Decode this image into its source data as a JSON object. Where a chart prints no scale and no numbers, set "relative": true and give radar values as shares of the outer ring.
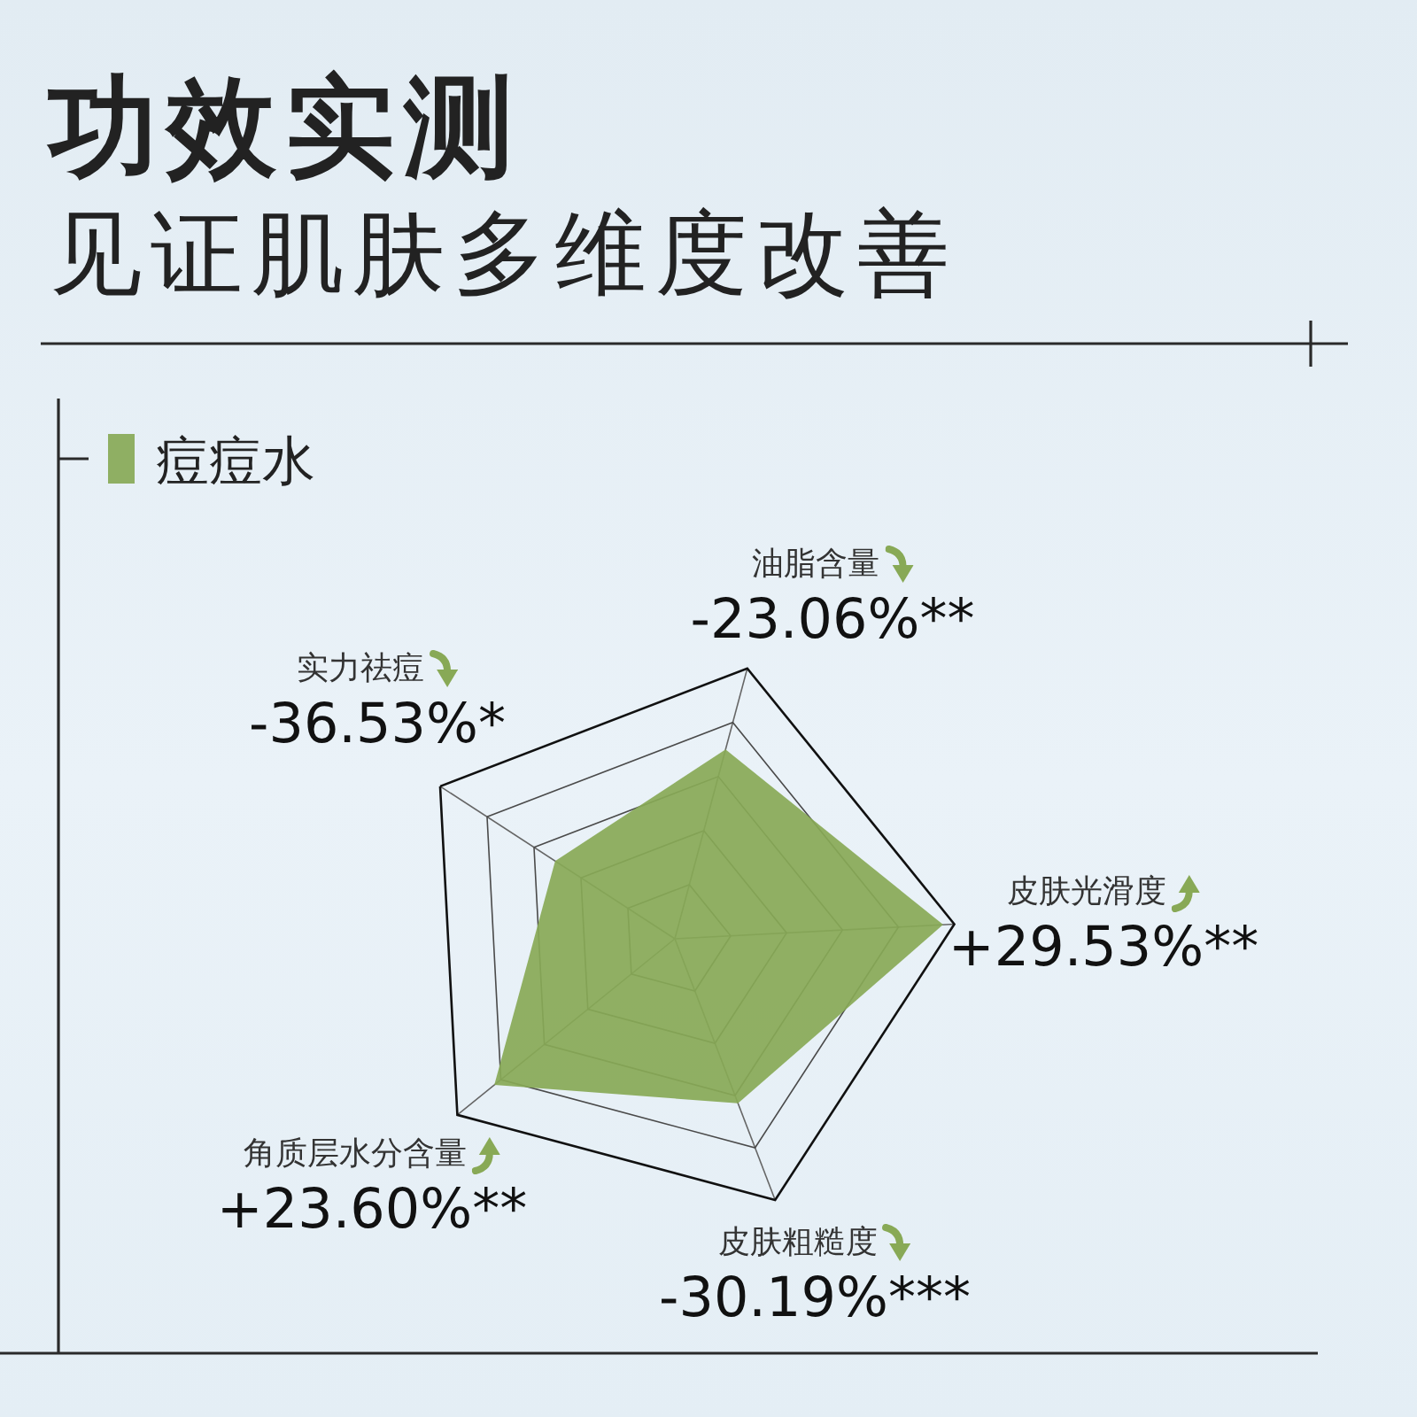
{
  "chart_data": {
    "type": "radar",
    "title": "功效实测",
    "subtitle": "见证肌肤多维度改善",
    "categories": [
      "油脂含量",
      "皮肤光滑度",
      "皮肤粗糙度",
      "角质层水分含量",
      "实力祛痘"
    ],
    "relative": true,
    "series": [
      {
        "name": "痘痘水",
        "color": "#88a956",
        "values": [
          0.7,
          0.96,
          0.63,
          0.83,
          0.51
        ]
      }
    ],
    "annotations": [
      {
        "text": "-23.06%**",
        "x": "油脂含量"
      },
      {
        "text": "+29.53%**",
        "x": "皮肤光滑度"
      },
      {
        "text": "-30.19%***",
        "x": "皮肤粗糙度"
      },
      {
        "text": "+23.60%**",
        "x": "角质层水分含量"
      },
      {
        "text": "-36.53%*",
        "x": "实力祛痘"
      }
    ],
    "grid": true,
    "legend": "top left"
  }
}
